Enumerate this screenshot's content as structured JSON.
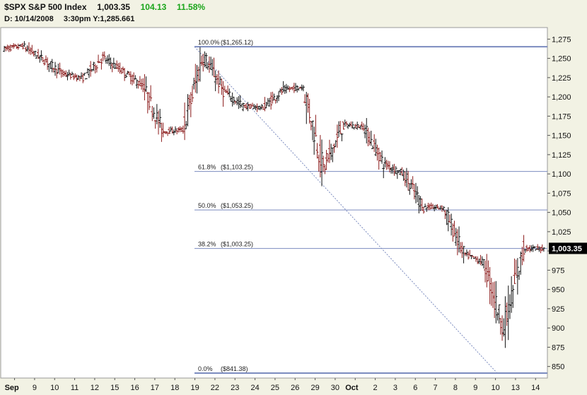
{
  "header": {
    "symbol": "$SPX",
    "name": "S&P 500 Index",
    "last": "1,003.35",
    "change": "104.13",
    "change_pct": "11.58%",
    "date_label": "D: 10/14/2008",
    "time": "3:30pm",
    "y_label": "Y:",
    "y_value": "1,285.661"
  },
  "colors": {
    "background": "#f2f2e4",
    "plot": "#ffffff",
    "fib_line": "#7b8bbf",
    "up_bar": "#111111",
    "down_bar": "#8b1a1a",
    "change_green": "#1aa51a",
    "last_price_tag": "#000000"
  },
  "chart_data": {
    "type": "ohlc",
    "interval": "30-minute",
    "ylim": [
      835,
      1290
    ],
    "y_ticks": [
      850,
      875,
      900,
      925,
      950,
      975,
      1000,
      1025,
      1050,
      1075,
      1100,
      1125,
      1150,
      1175,
      1200,
      1225,
      1250,
      1275
    ],
    "y_tick_labels": [
      "850",
      "875",
      "900",
      "925",
      "950",
      "975",
      "",
      "1,025",
      "1,050",
      "1,075",
      "1,100",
      "1,125",
      "1,150",
      "1,175",
      "1,200",
      "1,225",
      "1,250",
      "1,275"
    ],
    "last_price_label": "1,003.35",
    "last_price": 1003.35,
    "x_tick_labels": [
      "Sep",
      "9",
      "10",
      "11",
      "12",
      "15",
      "16",
      "17",
      "18",
      "19",
      "22",
      "23",
      "24",
      "25",
      "26",
      "29",
      "30",
      "Oct",
      "2",
      "3",
      "6",
      "7",
      "8",
      "9",
      "10",
      "13",
      "14"
    ],
    "fib_levels": [
      {
        "label": "100.0%",
        "price_label": "($1,265.12)",
        "value": 1265.12,
        "bold": true
      },
      {
        "label": "61.8%",
        "price_label": "($1,103.25)",
        "value": 1103.25,
        "bold": false
      },
      {
        "label": "50.0%",
        "price_label": "($1,053.25)",
        "value": 1053.25,
        "bold": false
      },
      {
        "label": "38.2%",
        "price_label": "($1,003.25)",
        "value": 1003.25,
        "bold": false
      },
      {
        "label": "0.0%",
        "price_label": "($841.38)",
        "value": 841.38,
        "bold": true
      }
    ],
    "trendline": {
      "from": 1265.12,
      "to": 841.38
    },
    "daily_closes": [
      1266,
      1249,
      1230,
      1224,
      1251,
      1233,
      1214,
      1155,
      1157,
      1255,
      1208,
      1188,
      1186,
      1209,
      1213,
      1106,
      1164,
      1161,
      1114,
      1100,
      1057,
      1056,
      996,
      985,
      899,
      1003,
      1003
    ],
    "bars": []
  }
}
